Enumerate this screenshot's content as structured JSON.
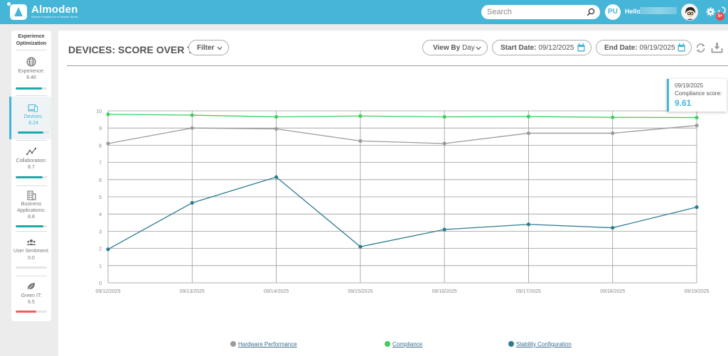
{
  "app": {
    "name": "Almoden",
    "tagline": "Smarter Insights for a Smarter World"
  },
  "header": {
    "search_placeholder": "Search",
    "avatar_initials": "PU",
    "greeting": "Hello",
    "notifications_badge": "5+"
  },
  "sidebar": {
    "title": "Experience Optimization",
    "items": [
      {
        "label": "Experience:",
        "value": "8.46",
        "progress": 0.846,
        "color": "#1aa9a6",
        "icon": "globe-icon"
      },
      {
        "label": "Devices:",
        "value": "8.24",
        "progress": 0.824,
        "color": "#1aa9a6",
        "icon": "devices-icon",
        "active": true
      },
      {
        "label": "Collaboration:",
        "value": "8.7",
        "progress": 0.87,
        "color": "#1aa9a6",
        "icon": "collaboration-icon"
      },
      {
        "label": "Business Applications:",
        "value": "8.8",
        "progress": 0.88,
        "color": "#1aa9a6",
        "icon": "building-icon"
      },
      {
        "label": "User Sentiment:",
        "value": "0.0",
        "progress": 0.0,
        "color": "#1aa9a6",
        "icon": "users-icon"
      },
      {
        "label": "Green IT:",
        "value": "6.5",
        "progress": 0.65,
        "color": "#ef5e5a",
        "icon": "leaf-icon"
      }
    ]
  },
  "main": {
    "title": "DEVICES: SCORE OVER TIME",
    "filter_label": "Filter",
    "view_by_label": "View By",
    "view_by_value": "Day",
    "start_date_label": "Start Date:",
    "start_date": "09/12/2025",
    "end_date_label": "End Date:",
    "end_date": "09/19/2025"
  },
  "tooltip": {
    "date": "09/19/2025",
    "label": "Compliance score:",
    "value": "9.61"
  },
  "chart_data": {
    "type": "line",
    "x": [
      "09/12/2025",
      "09/13/2025",
      "09/14/2025",
      "09/15/2025",
      "09/16/2025",
      "09/17/2025",
      "09/18/2025",
      "09/19/2025"
    ],
    "ylim": [
      0,
      10
    ],
    "yticks": [
      0,
      1,
      2,
      3,
      4,
      5,
      6,
      7,
      8,
      9,
      10
    ],
    "grid": true,
    "legend_position": "bottom",
    "series": [
      {
        "name": "Hardware Performance",
        "color": "#9b9b9b",
        "values": [
          8.1,
          9.0,
          8.95,
          8.25,
          8.1,
          8.7,
          8.7,
          9.15
        ]
      },
      {
        "name": "Compliance",
        "color": "#3ecf5f",
        "values": [
          9.8,
          9.75,
          9.65,
          9.7,
          9.65,
          9.67,
          9.62,
          9.61
        ]
      },
      {
        "name": "Stability Configuration",
        "color": "#2c7c90",
        "values": [
          1.95,
          4.65,
          6.15,
          2.1,
          3.1,
          3.4,
          3.2,
          4.4
        ]
      }
    ]
  }
}
